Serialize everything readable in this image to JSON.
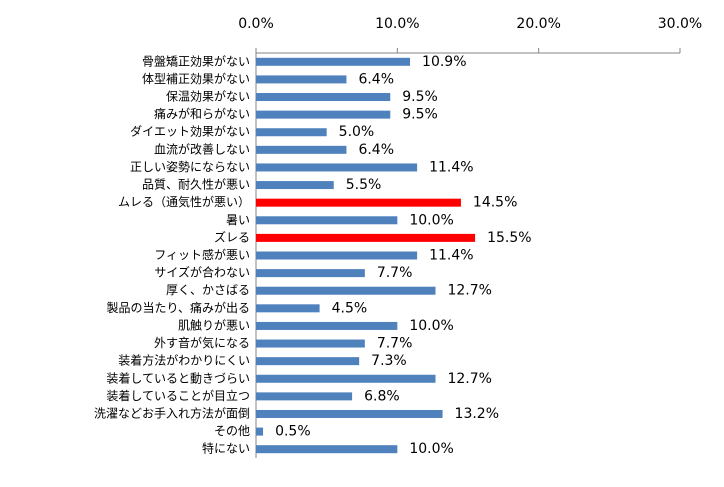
{
  "chart_data": {
    "type": "bar",
    "orientation": "horizontal",
    "categories": [
      "骨盤矯正効果がない",
      "体型補正効果がない",
      "保温効果がない",
      "痛みが和らがない",
      "ダイエット効果がない",
      "血流が改善しない",
      "正しい姿勢にならない",
      "品質、耐久性が悪い",
      "ムレる（通気性が悪い）",
      "暑い",
      "ズレる",
      "フィット感が悪い",
      "サイズが合わない",
      "厚く、かさばる",
      "製品の当たり、痛みが出る",
      "肌触りが悪い",
      "外す音が気になる",
      "装着方法がわかりにくい",
      "装着していると動きづらい",
      "装着していることが目立つ",
      "洗濯などお手入れ方法が面倒",
      "その他",
      "特にない"
    ],
    "values": [
      10.9,
      6.4,
      9.5,
      9.5,
      5.0,
      6.4,
      11.4,
      5.5,
      14.5,
      10.0,
      15.5,
      11.4,
      7.7,
      12.7,
      4.5,
      10.0,
      7.7,
      7.3,
      12.7,
      6.8,
      13.2,
      0.5,
      10.0
    ],
    "value_labels": [
      "10.9%",
      "6.4%",
      "9.5%",
      "9.5%",
      "5.0%",
      "6.4%",
      "11.4%",
      "5.5%",
      "14.5%",
      "10.0%",
      "15.5%",
      "11.4%",
      "7.7%",
      "12.7%",
      "4.5%",
      "10.0%",
      "7.7%",
      "7.3%",
      "12.7%",
      "6.8%",
      "13.2%",
      "0.5%",
      "10.0%"
    ],
    "colors": [
      "#4f81bd",
      "#4f81bd",
      "#4f81bd",
      "#4f81bd",
      "#4f81bd",
      "#4f81bd",
      "#4f81bd",
      "#4f81bd",
      "#ff0000",
      "#4f81bd",
      "#ff0000",
      "#4f81bd",
      "#4f81bd",
      "#4f81bd",
      "#4f81bd",
      "#4f81bd",
      "#4f81bd",
      "#4f81bd",
      "#4f81bd",
      "#4f81bd",
      "#4f81bd",
      "#4f81bd",
      "#4f81bd"
    ],
    "xlim": [
      0,
      30
    ],
    "xticks": [
      {
        "value": 0,
        "label": "0.0%"
      },
      {
        "value": 10,
        "label": "10.0%"
      },
      {
        "value": 20,
        "label": "20.0%"
      },
      {
        "value": 30,
        "label": "30.0%"
      }
    ],
    "grid": false
  }
}
